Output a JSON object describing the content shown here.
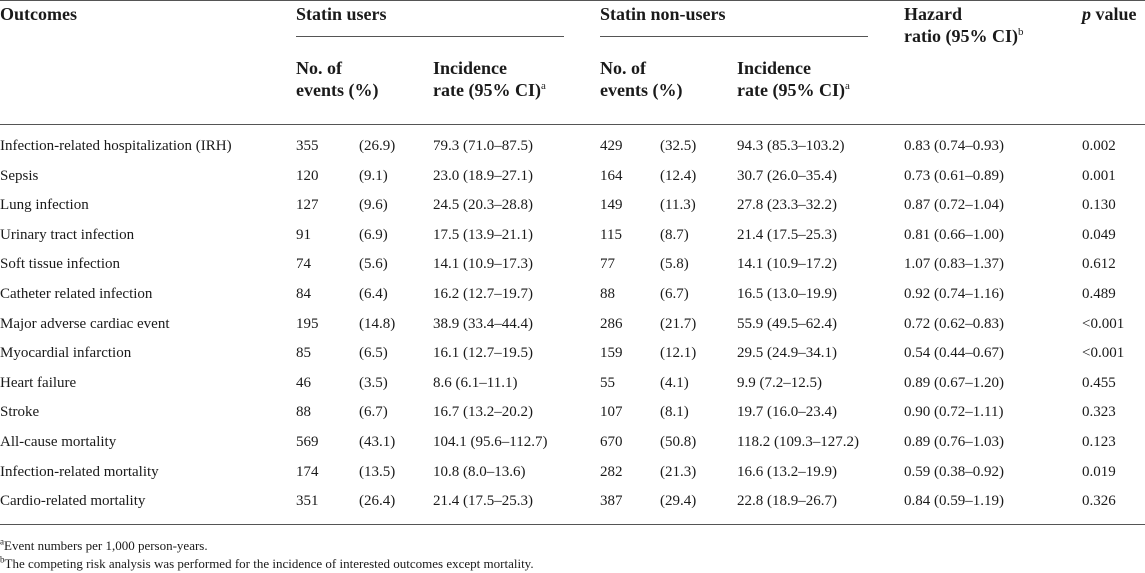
{
  "headers": {
    "outcomes": "Outcomes",
    "statin_users": "Statin users",
    "statin_nonusers": "Statin non-users",
    "hazard_line1": "Hazard",
    "hazard_line2": "ratio (95% CI)",
    "hazard_sup": "b",
    "p_italic": "p",
    "p_rest": " value",
    "events_line1": "No. of",
    "events_line2": "events (%)",
    "incidence_line1": "Incidence",
    "incidence_line2": "rate (95% CI)",
    "incidence_sup": "a"
  },
  "rows": [
    {
      "outcome": "Infection-related hospitalization (IRH)",
      "su_n": "355",
      "su_pct": "(26.9)",
      "su_rate": "79.3 (71.0–87.5)",
      "sn_n": "429",
      "sn_pct": "(32.5)",
      "sn_rate": "94.3 (85.3–103.2)",
      "hr": "0.83 (0.74–0.93)",
      "p": "0.002"
    },
    {
      "outcome": "Sepsis",
      "su_n": "120",
      "su_pct": "(9.1)",
      "su_rate": "23.0 (18.9–27.1)",
      "sn_n": "164",
      "sn_pct": "(12.4)",
      "sn_rate": "30.7 (26.0–35.4)",
      "hr": "0.73 (0.61–0.89)",
      "p": "0.001"
    },
    {
      "outcome": "Lung infection",
      "su_n": "127",
      "su_pct": "(9.6)",
      "su_rate": "24.5 (20.3–28.8)",
      "sn_n": "149",
      "sn_pct": "(11.3)",
      "sn_rate": "27.8 (23.3–32.2)",
      "hr": "0.87 (0.72–1.04)",
      "p": "0.130"
    },
    {
      "outcome": "Urinary tract infection",
      "su_n": "91",
      "su_pct": "(6.9)",
      "su_rate": "17.5 (13.9–21.1)",
      "sn_n": "115",
      "sn_pct": "(8.7)",
      "sn_rate": "21.4 (17.5–25.3)",
      "hr": "0.81 (0.66–1.00)",
      "p": "0.049"
    },
    {
      "outcome": "Soft tissue infection",
      "su_n": "74",
      "su_pct": "(5.6)",
      "su_rate": "14.1 (10.9–17.3)",
      "sn_n": "77",
      "sn_pct": "(5.8)",
      "sn_rate": "14.1 (10.9–17.2)",
      "hr": "1.07 (0.83–1.37)",
      "p": "0.612"
    },
    {
      "outcome": "Catheter related infection",
      "su_n": "84",
      "su_pct": "(6.4)",
      "su_rate": "16.2 (12.7–19.7)",
      "sn_n": "88",
      "sn_pct": "(6.7)",
      "sn_rate": "16.5 (13.0–19.9)",
      "hr": "0.92 (0.74–1.16)",
      "p": "0.489"
    },
    {
      "outcome": "Major adverse cardiac event",
      "su_n": "195",
      "su_pct": "(14.8)",
      "su_rate": "38.9 (33.4–44.4)",
      "sn_n": "286",
      "sn_pct": "(21.7)",
      "sn_rate": "55.9 (49.5–62.4)",
      "hr": "0.72 (0.62–0.83)",
      "p": "<0.001"
    },
    {
      "outcome": "Myocardial infarction",
      "su_n": "85",
      "su_pct": "(6.5)",
      "su_rate": "16.1 (12.7–19.5)",
      "sn_n": "159",
      "sn_pct": "(12.1)",
      "sn_rate": "29.5 (24.9–34.1)",
      "hr": "0.54 (0.44–0.67)",
      "p": "<0.001"
    },
    {
      "outcome": "Heart failure",
      "su_n": "46",
      "su_pct": "(3.5)",
      "su_rate": "8.6 (6.1–11.1)",
      "sn_n": "55",
      "sn_pct": "(4.1)",
      "sn_rate": "9.9 (7.2–12.5)",
      "hr": "0.89 (0.67–1.20)",
      "p": "0.455"
    },
    {
      "outcome": "Stroke",
      "su_n": "88",
      "su_pct": "(6.7)",
      "su_rate": "16.7 (13.2–20.2)",
      "sn_n": "107",
      "sn_pct": "(8.1)",
      "sn_rate": "19.7 (16.0–23.4)",
      "hr": "0.90 (0.72–1.11)",
      "p": "0.323"
    },
    {
      "outcome": "All-cause mortality",
      "su_n": "569",
      "su_pct": "(43.1)",
      "su_rate": "104.1 (95.6–112.7)",
      "sn_n": "670",
      "sn_pct": "(50.8)",
      "sn_rate": "118.2 (109.3–127.2)",
      "hr": "0.89 (0.76–1.03)",
      "p": "0.123"
    },
    {
      "outcome": "Infection-related mortality",
      "su_n": "174",
      "su_pct": "(13.5)",
      "su_rate": "10.8 (8.0–13.6)",
      "sn_n": "282",
      "sn_pct": "(21.3)",
      "sn_rate": "16.6 (13.2–19.9)",
      "hr": "0.59 (0.38–0.92)",
      "p": "0.019"
    },
    {
      "outcome": "Cardio-related mortality",
      "su_n": "351",
      "su_pct": "(26.4)",
      "su_rate": "21.4 (17.5–25.3)",
      "sn_n": "387",
      "sn_pct": "(29.4)",
      "sn_rate": "22.8 (18.9–26.7)",
      "hr": "0.84 (0.59–1.19)",
      "p": "0.326"
    }
  ],
  "footnotes": [
    {
      "marker": "a",
      "text": "Event numbers per 1,000 person-years."
    },
    {
      "marker": "b",
      "text": "The competing risk analysis was performed for the incidence of interested outcomes except mortality."
    }
  ]
}
